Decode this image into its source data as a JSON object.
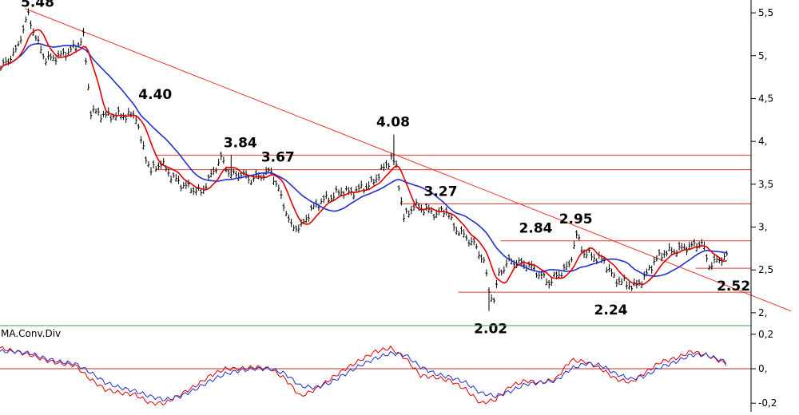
{
  "chart_data": [
    {
      "type": "candlestick",
      "panel": "price",
      "y_ticks": [
        2.0,
        2.5,
        3.0,
        3.5,
        4.0,
        4.5,
        5.0,
        5.5
      ],
      "y_tick_labels": [
        "2,",
        "2,5",
        "3,",
        "3,5",
        "4,",
        "4,5",
        "5,",
        "5,5"
      ],
      "ylim": [
        1.85,
        5.65
      ],
      "x_range": [
        0,
        300
      ],
      "colors": {
        "price": "#000000",
        "ma_fast": "#e00000",
        "ma_slow": "#1f2fd0",
        "levels": "#e8392e"
      },
      "annotations": [
        {
          "text": "5.48",
          "x": 15,
          "y": 5.48
        },
        {
          "text": "4.40",
          "x": 62,
          "y": 4.4
        },
        {
          "text": "3.84",
          "x": 96,
          "y": 3.84
        },
        {
          "text": "3.67",
          "x": 111,
          "y": 3.67
        },
        {
          "text": "4.08",
          "x": 157,
          "y": 4.08
        },
        {
          "text": "3.27",
          "x": 176,
          "y": 3.27
        },
        {
          "text": "2.84",
          "x": 214,
          "y": 2.84
        },
        {
          "text": "2.95",
          "x": 230,
          "y": 2.95
        },
        {
          "text": "2.02",
          "x": 196,
          "y": 2.02
        },
        {
          "text": "2.24",
          "x": 244,
          "y": 2.24
        },
        {
          "text": "2.52",
          "x": 293,
          "y": 2.52
        }
      ],
      "horizontal_levels": [
        {
          "value": 3.84,
          "x_start": 62
        },
        {
          "value": 3.67,
          "x_start": 62
        },
        {
          "value": 3.27,
          "x_start": 160
        },
        {
          "value": 2.84,
          "x_start": 200
        },
        {
          "value": 2.52,
          "x_start": 278
        },
        {
          "value": 2.24,
          "x_start": 183
        }
      ],
      "trendline": {
        "x1": 10,
        "y1": 5.55,
        "x2": 316,
        "y2": 2.02
      },
      "anchors": [
        [
          0,
          4.85
        ],
        [
          6,
          5.05
        ],
        [
          11,
          5.48
        ],
        [
          14,
          5.2
        ],
        [
          18,
          4.95
        ],
        [
          24,
          5.0
        ],
        [
          30,
          5.1
        ],
        [
          33,
          5.22
        ],
        [
          36,
          4.35
        ],
        [
          42,
          4.3
        ],
        [
          48,
          4.3
        ],
        [
          54,
          4.3
        ],
        [
          56,
          4.0
        ],
        [
          60,
          3.65
        ],
        [
          64,
          3.75
        ],
        [
          68,
          3.6
        ],
        [
          72,
          3.5
        ],
        [
          76,
          3.45
        ],
        [
          80,
          3.4
        ],
        [
          84,
          3.6
        ],
        [
          88,
          3.8
        ],
        [
          92,
          3.6
        ],
        [
          96,
          3.62
        ],
        [
          100,
          3.55
        ],
        [
          104,
          3.6
        ],
        [
          108,
          3.65
        ],
        [
          112,
          3.35
        ],
        [
          116,
          3.0
        ],
        [
          120,
          3.0
        ],
        [
          124,
          3.2
        ],
        [
          128,
          3.3
        ],
        [
          132,
          3.35
        ],
        [
          136,
          3.42
        ],
        [
          140,
          3.4
        ],
        [
          144,
          3.45
        ],
        [
          148,
          3.5
        ],
        [
          152,
          3.65
        ],
        [
          156,
          3.8
        ],
        [
          158,
          3.7
        ],
        [
          161,
          3.1
        ],
        [
          165,
          3.25
        ],
        [
          170,
          3.2
        ],
        [
          174,
          3.15
        ],
        [
          178,
          3.2
        ],
        [
          181,
          3.0
        ],
        [
          185,
          2.9
        ],
        [
          189,
          2.8
        ],
        [
          193,
          2.6
        ],
        [
          195,
          2.25
        ],
        [
          197,
          2.15
        ],
        [
          199,
          2.45
        ],
        [
          203,
          2.6
        ],
        [
          207,
          2.58
        ],
        [
          211,
          2.55
        ],
        [
          215,
          2.45
        ],
        [
          219,
          2.35
        ],
        [
          223,
          2.45
        ],
        [
          227,
          2.55
        ],
        [
          230,
          2.9
        ],
        [
          233,
          2.7
        ],
        [
          237,
          2.65
        ],
        [
          241,
          2.6
        ],
        [
          245,
          2.4
        ],
        [
          249,
          2.35
        ],
        [
          253,
          2.3
        ],
        [
          257,
          2.4
        ],
        [
          261,
          2.6
        ],
        [
          265,
          2.7
        ],
        [
          269,
          2.72
        ],
        [
          273,
          2.76
        ],
        [
          277,
          2.78
        ],
        [
          280,
          2.82
        ],
        [
          283,
          2.55
        ],
        [
          287,
          2.62
        ],
        [
          290,
          2.66
        ]
      ]
    },
    {
      "type": "line",
      "panel": "indicator",
      "series_label": "MA.Conv.Div",
      "y_ticks": [
        0.2,
        0.0,
        -0.2
      ],
      "y_tick_labels": [
        "0,2",
        "0,",
        "-0,2"
      ],
      "ylim": [
        -0.25,
        0.25
      ],
      "macd": [
        [
          0,
          0.12
        ],
        [
          6,
          0.1
        ],
        [
          12,
          0.08
        ],
        [
          18,
          0.05
        ],
        [
          24,
          0.03
        ],
        [
          30,
          0.02
        ],
        [
          36,
          -0.06
        ],
        [
          42,
          -0.12
        ],
        [
          48,
          -0.14
        ],
        [
          54,
          -0.15
        ],
        [
          60,
          -0.2
        ],
        [
          66,
          -0.2
        ],
        [
          72,
          -0.15
        ],
        [
          78,
          -0.1
        ],
        [
          84,
          -0.04
        ],
        [
          90,
          0.0
        ],
        [
          96,
          0.0
        ],
        [
          102,
          0.01
        ],
        [
          108,
          0.0
        ],
        [
          114,
          -0.06
        ],
        [
          120,
          -0.16
        ],
        [
          126,
          -0.12
        ],
        [
          132,
          -0.06
        ],
        [
          138,
          0.0
        ],
        [
          144,
          0.05
        ],
        [
          150,
          0.1
        ],
        [
          156,
          0.12
        ],
        [
          162,
          0.06
        ],
        [
          168,
          -0.04
        ],
        [
          174,
          -0.05
        ],
        [
          180,
          -0.07
        ],
        [
          186,
          -0.12
        ],
        [
          192,
          -0.2
        ],
        [
          198,
          -0.18
        ],
        [
          204,
          -0.1
        ],
        [
          210,
          -0.07
        ],
        [
          216,
          -0.08
        ],
        [
          222,
          -0.06
        ],
        [
          228,
          0.05
        ],
        [
          234,
          0.04
        ],
        [
          240,
          0.0
        ],
        [
          246,
          -0.06
        ],
        [
          252,
          -0.08
        ],
        [
          258,
          -0.02
        ],
        [
          264,
          0.04
        ],
        [
          270,
          0.06
        ],
        [
          276,
          0.1
        ],
        [
          282,
          0.08
        ],
        [
          290,
          0.03
        ]
      ],
      "signal": [
        [
          0,
          0.1
        ],
        [
          6,
          0.1
        ],
        [
          12,
          0.09
        ],
        [
          18,
          0.06
        ],
        [
          24,
          0.04
        ],
        [
          30,
          0.03
        ],
        [
          36,
          -0.02
        ],
        [
          42,
          -0.08
        ],
        [
          48,
          -0.11
        ],
        [
          54,
          -0.13
        ],
        [
          60,
          -0.16
        ],
        [
          66,
          -0.18
        ],
        [
          72,
          -0.16
        ],
        [
          78,
          -0.12
        ],
        [
          84,
          -0.07
        ],
        [
          90,
          -0.03
        ],
        [
          96,
          -0.01
        ],
        [
          102,
          0.0
        ],
        [
          108,
          0.0
        ],
        [
          114,
          -0.03
        ],
        [
          120,
          -0.1
        ],
        [
          126,
          -0.11
        ],
        [
          132,
          -0.08
        ],
        [
          138,
          -0.03
        ],
        [
          144,
          0.02
        ],
        [
          150,
          0.06
        ],
        [
          156,
          0.09
        ],
        [
          162,
          0.08
        ],
        [
          168,
          0.01
        ],
        [
          174,
          -0.03
        ],
        [
          180,
          -0.05
        ],
        [
          186,
          -0.08
        ],
        [
          192,
          -0.14
        ],
        [
          198,
          -0.16
        ],
        [
          204,
          -0.13
        ],
        [
          210,
          -0.09
        ],
        [
          216,
          -0.08
        ],
        [
          222,
          -0.07
        ],
        [
          228,
          0.0
        ],
        [
          234,
          0.03
        ],
        [
          240,
          0.02
        ],
        [
          246,
          -0.03
        ],
        [
          252,
          -0.06
        ],
        [
          258,
          -0.04
        ],
        [
          264,
          0.01
        ],
        [
          270,
          0.04
        ],
        [
          276,
          0.08
        ],
        [
          282,
          0.08
        ],
        [
          290,
          0.04
        ]
      ]
    }
  ]
}
